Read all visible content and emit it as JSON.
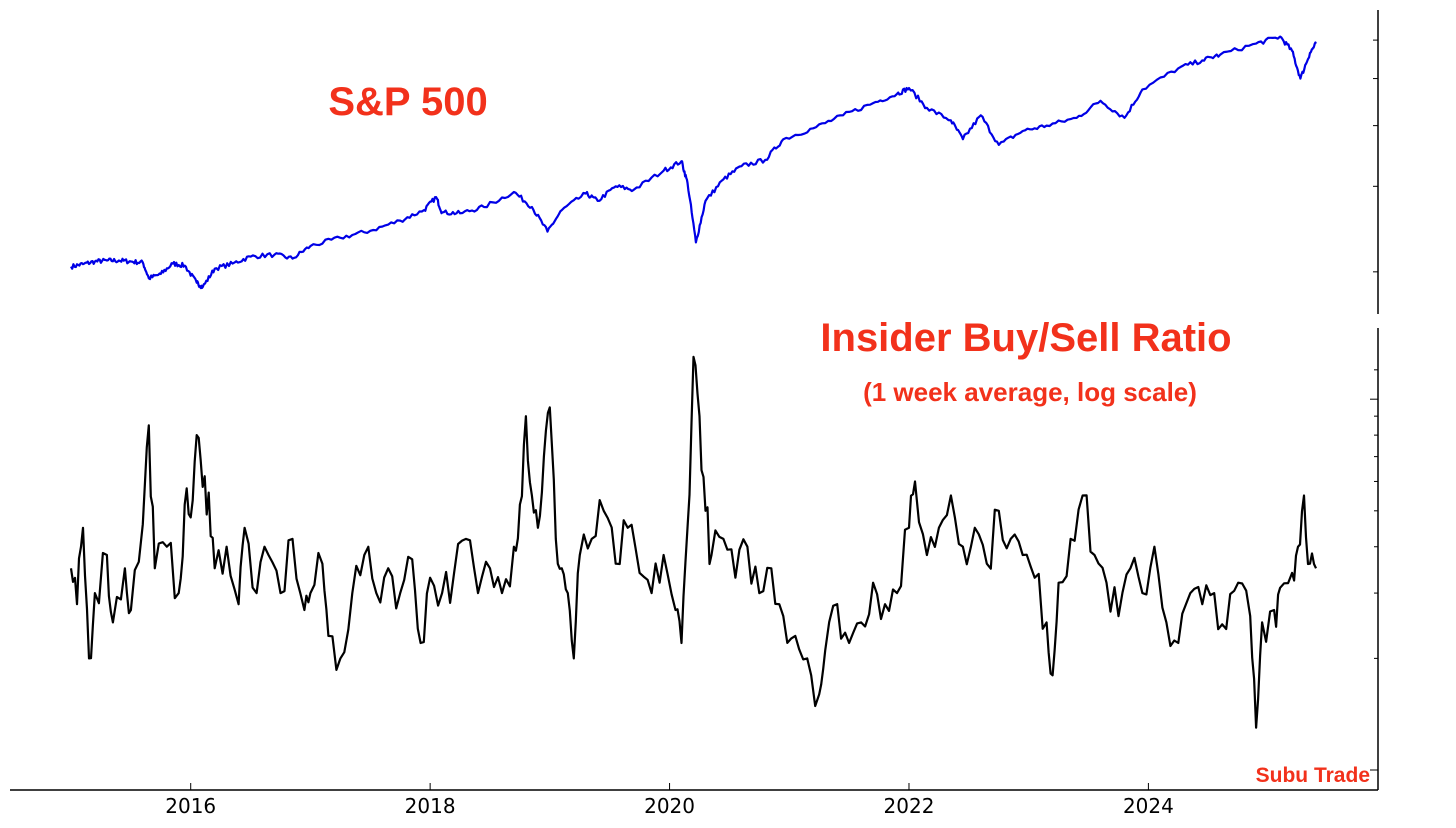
{
  "colors": {
    "annotation": "#f2311b",
    "sp500_line": "#0000e6",
    "ratio_line": "#000000",
    "axis": "#000000",
    "background": "#ffffff"
  },
  "annotations": {
    "sp500_title": "S&P 500",
    "ratio_title": "Insider Buy/Sell Ratio",
    "ratio_subtitle": "(1 week average, log scale)",
    "watermark": "Subu Trade"
  },
  "chart_data": [
    {
      "type": "line",
      "panel": "top",
      "title": "S&P 500",
      "y_scale": "log",
      "tick_labels_shown": false,
      "x_range": [
        2015.0,
        2025.4
      ],
      "y_range": [
        1750,
        6600
      ],
      "series": [
        {
          "name": "S&P 500",
          "color": "#0000e6",
          "points": [
            [
              2015.0,
              2050
            ],
            [
              2015.1,
              2075
            ],
            [
              2015.2,
              2100
            ],
            [
              2015.3,
              2110
            ],
            [
              2015.4,
              2110
            ],
            [
              2015.5,
              2100
            ],
            [
              2015.6,
              2090
            ],
            [
              2015.65,
              1940
            ],
            [
              2015.75,
              1980
            ],
            [
              2015.85,
              2080
            ],
            [
              2015.95,
              2060
            ],
            [
              2016.05,
              1900
            ],
            [
              2016.1,
              1860
            ],
            [
              2016.2,
              2030
            ],
            [
              2016.35,
              2080
            ],
            [
              2016.5,
              2150
            ],
            [
              2016.7,
              2170
            ],
            [
              2016.85,
              2130
            ],
            [
              2017.0,
              2260
            ],
            [
              2017.25,
              2350
            ],
            [
              2017.5,
              2430
            ],
            [
              2017.75,
              2550
            ],
            [
              2017.95,
              2680
            ],
            [
              2018.05,
              2850
            ],
            [
              2018.1,
              2650
            ],
            [
              2018.25,
              2640
            ],
            [
              2018.45,
              2720
            ],
            [
              2018.7,
              2920
            ],
            [
              2018.85,
              2720
            ],
            [
              2018.98,
              2420
            ],
            [
              2019.1,
              2680
            ],
            [
              2019.3,
              2900
            ],
            [
              2019.4,
              2800
            ],
            [
              2019.55,
              3000
            ],
            [
              2019.7,
              2950
            ],
            [
              2019.95,
              3230
            ],
            [
              2020.1,
              3380
            ],
            [
              2020.15,
              3050
            ],
            [
              2020.22,
              2300
            ],
            [
              2020.3,
              2800
            ],
            [
              2020.45,
              3100
            ],
            [
              2020.6,
              3300
            ],
            [
              2020.8,
              3400
            ],
            [
              2020.95,
              3750
            ],
            [
              2021.2,
              3950
            ],
            [
              2021.45,
              4200
            ],
            [
              2021.7,
              4450
            ],
            [
              2021.9,
              4650
            ],
            [
              2022.0,
              4780
            ],
            [
              2022.15,
              4350
            ],
            [
              2022.35,
              4100
            ],
            [
              2022.45,
              3750
            ],
            [
              2022.6,
              4200
            ],
            [
              2022.75,
              3650
            ],
            [
              2022.95,
              3900
            ],
            [
              2023.15,
              4000
            ],
            [
              2023.4,
              4150
            ],
            [
              2023.6,
              4500
            ],
            [
              2023.8,
              4150
            ],
            [
              2023.95,
              4750
            ],
            [
              2024.25,
              5250
            ],
            [
              2024.45,
              5450
            ],
            [
              2024.6,
              5600
            ],
            [
              2024.9,
              5900
            ],
            [
              2025.1,
              6100
            ],
            [
              2025.2,
              5700
            ],
            [
              2025.27,
              5000
            ],
            [
              2025.35,
              5650
            ],
            [
              2025.4,
              5900
            ]
          ]
        }
      ]
    },
    {
      "type": "line",
      "panel": "bottom",
      "title": "Insider Buy/Sell Ratio",
      "subtitle": "(1 week average, log scale)",
      "y_scale": "log",
      "tick_labels_shown": false,
      "x_range": [
        2015.0,
        2025.4
      ],
      "y_range": [
        0.1,
        1.4
      ],
      "x_ticks": [
        2016,
        2018,
        2020,
        2022,
        2024
      ],
      "x_tick_labels": [
        "2016",
        "2018",
        "2020",
        "2022",
        "2024"
      ],
      "series": [
        {
          "name": "Insider Buy/Sell Ratio",
          "color": "#000000",
          "points": [
            [
              2015.0,
              0.35
            ],
            [
              2015.05,
              0.28
            ],
            [
              2015.1,
              0.45
            ],
            [
              2015.15,
              0.2
            ],
            [
              2015.2,
              0.3
            ],
            [
              2015.3,
              0.38
            ],
            [
              2015.35,
              0.25
            ],
            [
              2015.45,
              0.35
            ],
            [
              2015.5,
              0.27
            ],
            [
              2015.6,
              0.46
            ],
            [
              2015.65,
              0.85
            ],
            [
              2015.7,
              0.35
            ],
            [
              2015.8,
              0.4
            ],
            [
              2015.9,
              0.3
            ],
            [
              2015.95,
              0.52
            ],
            [
              2016.0,
              0.48
            ],
            [
              2016.05,
              0.8
            ],
            [
              2016.1,
              0.58
            ],
            [
              2016.15,
              0.56
            ],
            [
              2016.2,
              0.35
            ],
            [
              2016.3,
              0.4
            ],
            [
              2016.4,
              0.28
            ],
            [
              2016.45,
              0.45
            ],
            [
              2016.55,
              0.3
            ],
            [
              2016.65,
              0.38
            ],
            [
              2016.75,
              0.3
            ],
            [
              2016.85,
              0.42
            ],
            [
              2016.95,
              0.27
            ],
            [
              2017.0,
              0.3
            ],
            [
              2017.1,
              0.36
            ],
            [
              2017.15,
              0.23
            ],
            [
              2017.25,
              0.2
            ],
            [
              2017.35,
              0.3
            ],
            [
              2017.45,
              0.38
            ],
            [
              2017.55,
              0.3
            ],
            [
              2017.65,
              0.35
            ],
            [
              2017.75,
              0.3
            ],
            [
              2017.85,
              0.37
            ],
            [
              2017.92,
              0.22
            ],
            [
              2018.0,
              0.33
            ],
            [
              2018.1,
              0.3
            ],
            [
              2018.2,
              0.34
            ],
            [
              2018.3,
              0.42
            ],
            [
              2018.4,
              0.3
            ],
            [
              2018.5,
              0.35
            ],
            [
              2018.6,
              0.3
            ],
            [
              2018.7,
              0.4
            ],
            [
              2018.75,
              0.52
            ],
            [
              2018.8,
              0.9
            ],
            [
              2018.85,
              0.55
            ],
            [
              2018.9,
              0.45
            ],
            [
              2018.95,
              0.7
            ],
            [
              2019.0,
              0.95
            ],
            [
              2019.05,
              0.42
            ],
            [
              2019.1,
              0.35
            ],
            [
              2019.15,
              0.3
            ],
            [
              2019.2,
              0.2
            ],
            [
              2019.25,
              0.38
            ],
            [
              2019.35,
              0.42
            ],
            [
              2019.45,
              0.5
            ],
            [
              2019.55,
              0.36
            ],
            [
              2019.65,
              0.45
            ],
            [
              2019.75,
              0.34
            ],
            [
              2019.85,
              0.3
            ],
            [
              2019.95,
              0.38
            ],
            [
              2020.05,
              0.27
            ],
            [
              2020.1,
              0.22
            ],
            [
              2020.15,
              0.45
            ],
            [
              2020.2,
              1.3
            ],
            [
              2020.25,
              0.9
            ],
            [
              2020.3,
              0.5
            ],
            [
              2020.35,
              0.38
            ],
            [
              2020.45,
              0.42
            ],
            [
              2020.55,
              0.33
            ],
            [
              2020.65,
              0.4
            ],
            [
              2020.75,
              0.3
            ],
            [
              2020.85,
              0.35
            ],
            [
              2020.95,
              0.26
            ],
            [
              2021.05,
              0.23
            ],
            [
              2021.15,
              0.2
            ],
            [
              2021.25,
              0.16
            ],
            [
              2021.3,
              0.21
            ],
            [
              2021.4,
              0.28
            ],
            [
              2021.5,
              0.22
            ],
            [
              2021.6,
              0.25
            ],
            [
              2021.7,
              0.32
            ],
            [
              2021.8,
              0.28
            ],
            [
              2021.9,
              0.3
            ],
            [
              2022.0,
              0.45
            ],
            [
              2022.05,
              0.6
            ],
            [
              2022.15,
              0.38
            ],
            [
              2022.25,
              0.45
            ],
            [
              2022.35,
              0.55
            ],
            [
              2022.45,
              0.4
            ],
            [
              2022.55,
              0.45
            ],
            [
              2022.65,
              0.36
            ],
            [
              2022.75,
              0.5
            ],
            [
              2022.85,
              0.42
            ],
            [
              2022.95,
              0.38
            ],
            [
              2023.05,
              0.33
            ],
            [
              2023.15,
              0.25
            ],
            [
              2023.2,
              0.18
            ],
            [
              2023.25,
              0.32
            ],
            [
              2023.35,
              0.42
            ],
            [
              2023.45,
              0.55
            ],
            [
              2023.55,
              0.38
            ],
            [
              2023.65,
              0.32
            ],
            [
              2023.75,
              0.26
            ],
            [
              2023.85,
              0.35
            ],
            [
              2023.95,
              0.3
            ],
            [
              2024.05,
              0.4
            ],
            [
              2024.15,
              0.25
            ],
            [
              2024.25,
              0.22
            ],
            [
              2024.35,
              0.3
            ],
            [
              2024.45,
              0.28
            ],
            [
              2024.55,
              0.3
            ],
            [
              2024.65,
              0.24
            ],
            [
              2024.75,
              0.32
            ],
            [
              2024.85,
              0.26
            ],
            [
              2024.9,
              0.13
            ],
            [
              2024.95,
              0.25
            ],
            [
              2025.05,
              0.27
            ],
            [
              2025.1,
              0.31
            ],
            [
              2025.2,
              0.34
            ],
            [
              2025.25,
              0.4
            ],
            [
              2025.3,
              0.55
            ],
            [
              2025.35,
              0.36
            ],
            [
              2025.4,
              0.35
            ]
          ]
        }
      ]
    }
  ]
}
